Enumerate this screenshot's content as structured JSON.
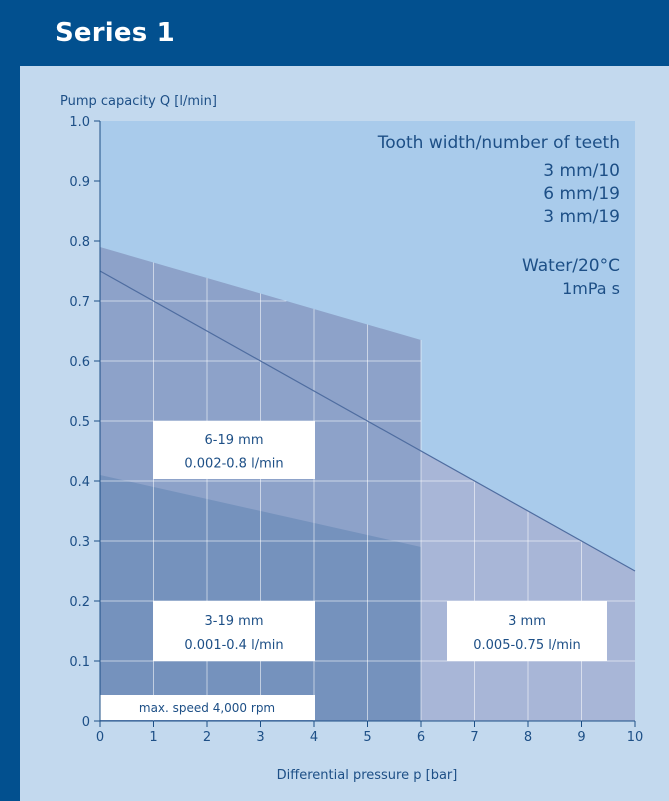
{
  "header": {
    "title": "Series 1"
  },
  "colors": {
    "frame": "#02508f",
    "panel": "#c3d9ee",
    "plot_bg": "#a9cbeb",
    "region_6_19": "#8da2c9",
    "region_3_19": "#7592bd",
    "region_3": "#a8b6d7",
    "line": "#4f6da0",
    "text": "#1d4f86",
    "label_box": "#ffffff"
  },
  "chart_data": {
    "type": "area",
    "ylabel": "Pump capacity Q [l/min]",
    "xlabel": "Differential pressure p [bar]",
    "xlim": [
      0,
      10
    ],
    "ylim": [
      0,
      1.0
    ],
    "x_ticks": [
      "0",
      "1",
      "2",
      "3",
      "4",
      "5",
      "6",
      "7",
      "8",
      "9",
      "10"
    ],
    "y_ticks": [
      "0",
      "0.1",
      "0.2",
      "0.3",
      "0.4",
      "0.5",
      "0.6",
      "0.7",
      "0.8",
      "0.9",
      "1.0"
    ],
    "grid": true,
    "legend": {
      "title": "Tooth width/number of teeth",
      "entries": [
        "3 mm/10",
        "6 mm/19",
        "3 mm/19"
      ],
      "medium": "Water/20°C",
      "viscosity": "1mPa s"
    },
    "series": [
      {
        "name": "6-19 mm",
        "x": [
          0,
          6
        ],
        "y": [
          0.79,
          0.635
        ]
      },
      {
        "name": "3-19 mm",
        "x": [
          0,
          6
        ],
        "y": [
          0.41,
          0.29
        ]
      },
      {
        "name": "3 mm",
        "x": [
          0,
          10
        ],
        "y": [
          0.75,
          0.25
        ]
      }
    ],
    "annotations": {
      "region_6_19": {
        "line1": "6-19 mm",
        "line2": "0.002-0.8 l/min"
      },
      "region_3_19": {
        "line1": "3-19 mm",
        "line2": "0.001-0.4 l/min"
      },
      "region_3": {
        "line1": "3 mm",
        "line2": "0.005-0.75 l/min"
      },
      "max_speed": "max. speed 4,000 rpm"
    }
  }
}
